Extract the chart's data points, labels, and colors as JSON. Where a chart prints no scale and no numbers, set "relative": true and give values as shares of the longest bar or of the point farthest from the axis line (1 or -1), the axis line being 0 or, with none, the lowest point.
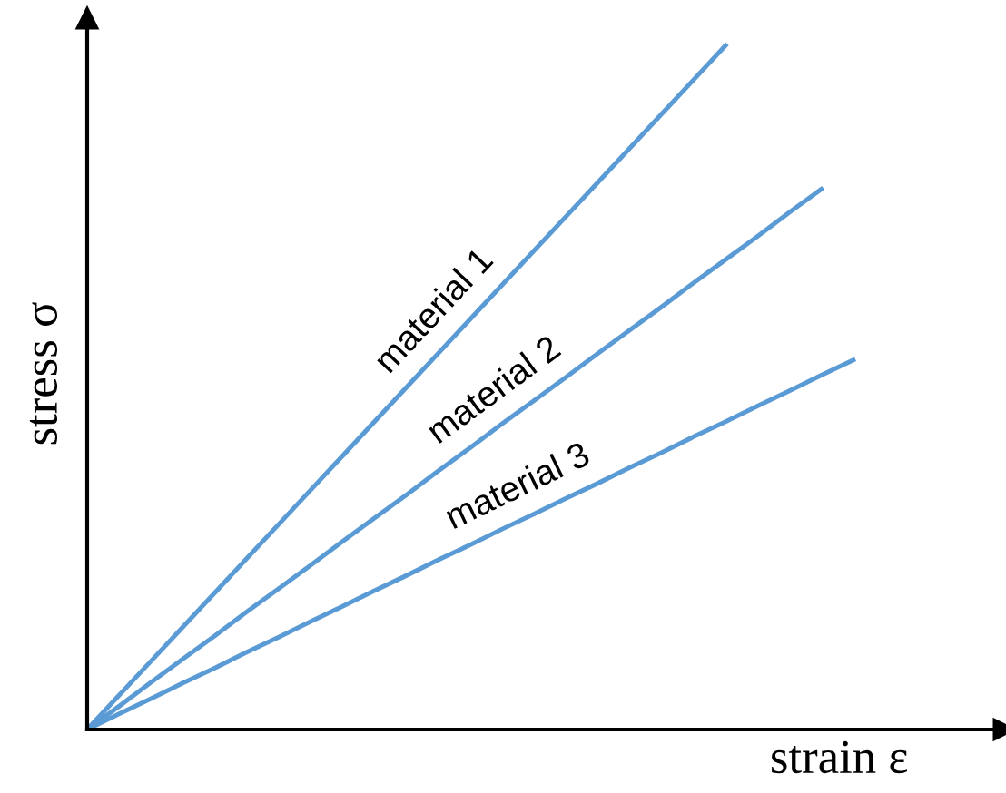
{
  "chart_data": {
    "type": "line",
    "relative": true,
    "xlabel": "strain ε",
    "ylabel": "stress σ",
    "marker": "none",
    "line_style": "solid",
    "tick_labels": false,
    "categories": [
      null,
      null,
      null,
      null,
      null,
      null,
      null,
      null,
      null,
      null,
      null,
      null,
      null,
      null,
      null,
      null,
      null,
      null,
      null,
      null,
      null,
      null,
      null,
      null,
      null
    ],
    "series": [
      {
        "name": "material 1",
        "color": "#5b9bd5",
        "values": [
          0,
          0.05,
          0.1,
          0.15,
          0.2,
          0.25,
          0.3,
          0.35,
          0.4,
          0.45,
          0.5,
          0.55,
          0.6,
          0.65,
          0.7,
          0.75,
          0.8,
          0.85,
          0.9,
          0.95,
          1,
          null,
          null,
          null,
          null
        ]
      },
      {
        "name": "material 2",
        "color": "#5b9bd5",
        "values": [
          0,
          0.034,
          0.069,
          0.103,
          0.137,
          0.172,
          0.206,
          0.24,
          0.275,
          0.309,
          0.343,
          0.378,
          0.412,
          0.447,
          0.481,
          0.515,
          0.55,
          0.584,
          0.618,
          0.653,
          0.687,
          0.721,
          0.756,
          0.79,
          null
        ]
      },
      {
        "name": "material 3",
        "color": "#5b9bd5",
        "values": [
          0,
          0.023,
          0.045,
          0.068,
          0.09,
          0.113,
          0.135,
          0.158,
          0.18,
          0.203,
          0.225,
          0.248,
          0.27,
          0.293,
          0.315,
          0.338,
          0.36,
          0.383,
          0.405,
          0.428,
          0.45,
          0.473,
          0.495,
          0.518,
          0.54
        ]
      }
    ]
  }
}
